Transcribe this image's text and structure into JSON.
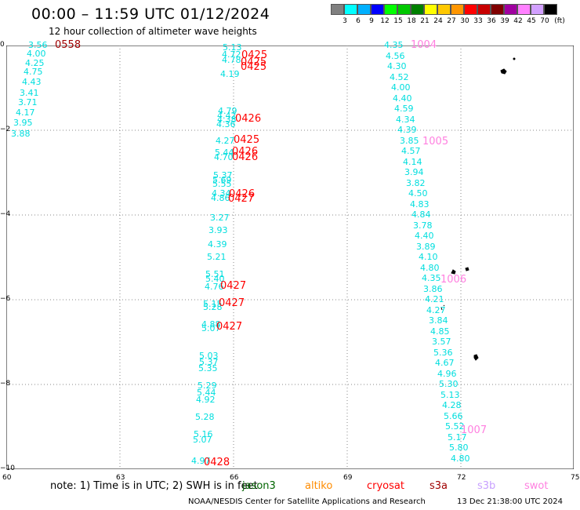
{
  "title": "00:00 – 11:59 UTC 01/12/2024",
  "subtitle": "12 hour collection of altimeter wave heights",
  "colorbar": {
    "ticks": [
      "3",
      "6",
      "9",
      "12",
      "15",
      "18",
      "21",
      "24",
      "27",
      "30",
      "33",
      "36",
      "39",
      "42",
      "45",
      "70",
      "(ft)"
    ],
    "colors": [
      "#808080",
      "#00ffff",
      "#00b0ff",
      "#0000ff",
      "#00ff00",
      "#00c800",
      "#008000",
      "#ffff00",
      "#ffc800",
      "#ff9600",
      "#ff0000",
      "#c80000",
      "#800000",
      "#a000a0",
      "#ff80ff",
      "#d2a0ff",
      "#000000"
    ]
  },
  "axes": {
    "y_labels": [
      "0",
      "−2",
      "−4",
      "−6",
      "−8",
      "−10"
    ],
    "x_labels": [
      "60",
      "63",
      "66",
      "69",
      "72",
      "75"
    ]
  },
  "track1": {
    "values": [
      "3.56",
      "4.00",
      "4.25",
      "4.75",
      "4.43",
      "3.41",
      "3.71",
      "4.17",
      "3.95",
      "3.88"
    ],
    "pass": "0558"
  },
  "track2": {
    "values": [
      "5.13",
      "4.72",
      "4.78",
      "4.19",
      "4.79",
      "4.42",
      "4.38",
      "4.36",
      "4.27",
      "5.44",
      "4.70",
      "5.37",
      "5.69",
      "5.55",
      "4.34",
      "4.86",
      "3.27",
      "3.93",
      "4.39",
      "5.21",
      "5.51",
      "5.40",
      "4.76",
      "5.15",
      "5.28",
      "4.88",
      "5.07",
      "5.03",
      "5.37",
      "5.35",
      "5.29",
      "5.44",
      "4.92",
      "5.28",
      "5.16",
      "5.07",
      "4.97"
    ],
    "passes": [
      "0425",
      "0425",
      "0425",
      "0426",
      "0425",
      "0426",
      "0426",
      "0426",
      "0427",
      "0427",
      "0427",
      "0427",
      "0428"
    ]
  },
  "track3": {
    "values": [
      "4.35",
      "4.56",
      "4.30",
      "4.52",
      "4.00",
      "4.40",
      "4.59",
      "4.34",
      "4.39",
      "3.85",
      "4.57",
      "4.14",
      "3.94",
      "3.82",
      "4.50",
      "4.83",
      "4.84",
      "3.78",
      "4.40",
      "3.89",
      "4.10",
      "4.80",
      "4.35",
      "3.86",
      "4.21",
      "4.27",
      "3.84",
      "4.85",
      "3.57",
      "5.36",
      "4.67",
      "4.96",
      "5.30",
      "5.13",
      "4.28",
      "5.66",
      "5.52",
      "5.17",
      "5.80",
      "4.80"
    ],
    "passes": [
      "1004",
      "1005",
      "1006",
      "1007"
    ]
  },
  "note": "note:  1) Time is in UTC; 2) SWH is in feet",
  "satellites": [
    {
      "name": "jason3",
      "color": "#006400"
    },
    {
      "name": "altiko",
      "color": "#ff8c00"
    },
    {
      "name": "cryosat",
      "color": "#ff0000"
    },
    {
      "name": "s3a",
      "color": "#a00000"
    },
    {
      "name": "s3b",
      "color": "#c8a0ff"
    },
    {
      "name": "swot",
      "color": "#ff80e0"
    }
  ],
  "footer": "NOAA/NESDIS Center for Satellite Applications and Research",
  "timestamp": "13 Dec 21:38:00 UTC 2024"
}
